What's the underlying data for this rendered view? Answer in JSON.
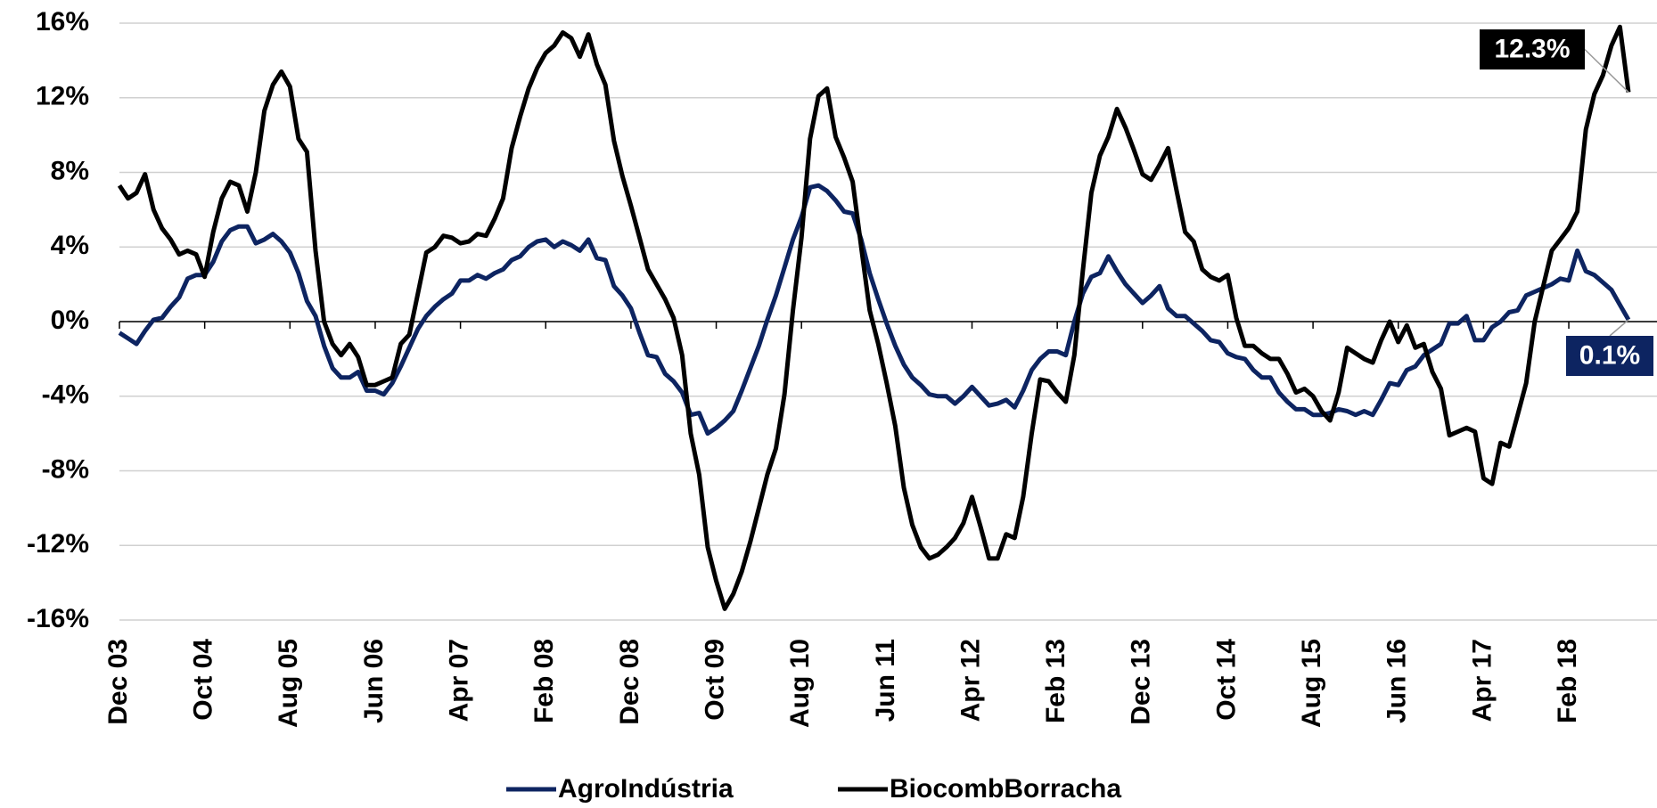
{
  "chart_data": {
    "type": "line",
    "categories": [
      "Dec 03",
      null,
      null,
      null,
      null,
      null,
      null,
      null,
      null,
      null,
      "Oct 04",
      null,
      null,
      null,
      null,
      null,
      null,
      null,
      null,
      null,
      "Aug 05",
      null,
      null,
      null,
      null,
      null,
      null,
      null,
      null,
      null,
      "Jun 06",
      null,
      null,
      null,
      null,
      null,
      null,
      null,
      null,
      null,
      "Apr 07",
      null,
      null,
      null,
      null,
      null,
      null,
      null,
      null,
      null,
      "Feb 08",
      null,
      null,
      null,
      null,
      null,
      null,
      null,
      null,
      null,
      "Dec 08",
      null,
      null,
      null,
      null,
      null,
      null,
      null,
      null,
      null,
      "Oct 09",
      null,
      null,
      null,
      null,
      null,
      null,
      null,
      null,
      null,
      "Aug 10",
      null,
      null,
      null,
      null,
      null,
      null,
      null,
      null,
      null,
      "Jun 11",
      null,
      null,
      null,
      null,
      null,
      null,
      null,
      null,
      null,
      "Apr 12",
      null,
      null,
      null,
      null,
      null,
      null,
      null,
      null,
      null,
      "Feb 13",
      null,
      null,
      null,
      null,
      null,
      null,
      null,
      null,
      null,
      "Dec 13",
      null,
      null,
      null,
      null,
      null,
      null,
      null,
      null,
      null,
      "Oct 14",
      null,
      null,
      null,
      null,
      null,
      null,
      null,
      null,
      null,
      "Aug 15",
      null,
      null,
      null,
      null,
      null,
      null,
      null,
      null,
      null,
      "Jun 16",
      null,
      null,
      null,
      null,
      null,
      null,
      null,
      null,
      null,
      "Apr 17",
      null,
      null,
      null,
      null,
      null,
      null,
      null,
      null,
      null,
      "Feb 18",
      null,
      null,
      null,
      null,
      null,
      null,
      null
    ],
    "series": [
      {
        "name": "AgroIndústria",
        "color": "#0d2461",
        "end_label": "0.1%",
        "values": [
          -0.6,
          -0.9,
          -1.2,
          -0.5,
          0.1,
          0.2,
          0.8,
          1.3,
          2.3,
          2.5,
          2.5,
          3.2,
          4.3,
          4.9,
          5.1,
          5.1,
          4.2,
          4.4,
          4.7,
          4.3,
          3.7,
          2.6,
          1.1,
          0.3,
          -1.3,
          -2.5,
          -3.0,
          -3.0,
          -2.7,
          -3.7,
          -3.7,
          -3.9,
          -3.3,
          -2.4,
          -1.4,
          -0.4,
          0.3,
          0.8,
          1.2,
          1.5,
          2.2,
          2.2,
          2.5,
          2.3,
          2.6,
          2.8,
          3.3,
          3.5,
          4.0,
          4.3,
          4.4,
          4.0,
          4.3,
          4.1,
          3.8,
          4.4,
          3.4,
          3.3,
          1.9,
          1.4,
          0.7,
          -0.6,
          -1.8,
          -1.9,
          -2.8,
          -3.2,
          -3.8,
          -5.0,
          -4.9,
          -6.0,
          -5.7,
          -5.3,
          -4.8,
          -3.7,
          -2.5,
          -1.3,
          0.1,
          1.4,
          2.9,
          4.4,
          5.6,
          7.2,
          7.3,
          7.0,
          6.5,
          5.9,
          5.8,
          4.4,
          2.6,
          1.2,
          -0.1,
          -1.3,
          -2.3,
          -3.0,
          -3.4,
          -3.9,
          -4.0,
          -4.0,
          -4.4,
          -4.0,
          -3.5,
          -4.0,
          -4.5,
          -4.4,
          -4.2,
          -4.6,
          -3.7,
          -2.6,
          -2.0,
          -1.6,
          -1.6,
          -1.8,
          0.0,
          1.5,
          2.4,
          2.6,
          3.5,
          2.7,
          2.0,
          1.5,
          1.0,
          1.4,
          1.9,
          0.7,
          0.3,
          0.3,
          -0.1,
          -0.5,
          -1.0,
          -1.1,
          -1.7,
          -1.9,
          -2.0,
          -2.6,
          -3.0,
          -3.0,
          -3.8,
          -4.3,
          -4.7,
          -4.7,
          -5.0,
          -5.0,
          -4.9,
          -4.7,
          -4.8,
          -5.0,
          -4.8,
          -5.0,
          -4.2,
          -3.3,
          -3.4,
          -2.6,
          -2.4,
          -1.8,
          -1.5,
          -1.2,
          -0.1,
          -0.1,
          0.3,
          -1.0,
          -1.0,
          -0.3,
          0.0,
          0.5,
          0.6,
          1.4,
          1.6,
          1.8,
          2.0,
          2.3,
          2.2,
          3.8,
          2.7,
          2.5,
          2.1,
          1.7,
          0.9,
          0.1
        ]
      },
      {
        "name": "BiocombBorracha",
        "color": "#000000",
        "end_label": "12.3%",
        "values": [
          7.3,
          6.6,
          6.9,
          7.9,
          6.0,
          5.0,
          4.4,
          3.6,
          3.8,
          3.6,
          2.4,
          4.8,
          6.6,
          7.5,
          7.3,
          5.9,
          8.0,
          11.3,
          12.7,
          13.4,
          12.6,
          9.8,
          9.1,
          3.8,
          0.0,
          -1.2,
          -1.8,
          -1.2,
          -1.9,
          -3.4,
          -3.4,
          -3.2,
          -3.0,
          -1.2,
          -0.7,
          1.5,
          3.7,
          4.0,
          4.6,
          4.5,
          4.2,
          4.3,
          4.7,
          4.6,
          5.5,
          6.6,
          9.3,
          11.0,
          12.5,
          13.6,
          14.4,
          14.8,
          15.5,
          15.2,
          14.2,
          15.4,
          13.8,
          12.7,
          9.7,
          7.8,
          6.2,
          4.5,
          2.8,
          2.0,
          1.2,
          0.2,
          -1.8,
          -6.0,
          -8.2,
          -12.1,
          -13.9,
          -15.4,
          -14.6,
          -13.4,
          -11.8,
          -10.0,
          -8.2,
          -6.8,
          -3.9,
          0.6,
          4.5,
          9.8,
          12.1,
          12.5,
          9.9,
          8.8,
          7.5,
          4.0,
          0.6,
          -1.2,
          -3.3,
          -5.6,
          -8.9,
          -10.9,
          -12.1,
          -12.7,
          -12.5,
          -12.1,
          -11.6,
          -10.8,
          -9.4,
          -11.0,
          -12.7,
          -12.7,
          -11.4,
          -11.6,
          -9.4,
          -6.0,
          -3.1,
          -3.2,
          -3.8,
          -4.3,
          -1.8,
          2.7,
          6.9,
          8.9,
          9.9,
          11.4,
          10.4,
          9.2,
          7.9,
          7.6,
          8.4,
          9.3,
          7.0,
          4.8,
          4.3,
          2.8,
          2.4,
          2.2,
          2.5,
          0.2,
          -1.3,
          -1.3,
          -1.7,
          -2.0,
          -2.0,
          -2.8,
          -3.8,
          -3.6,
          -4.0,
          -4.8,
          -5.3,
          -3.8,
          -1.4,
          -1.7,
          -2.0,
          -2.2,
          -1.0,
          0.0,
          -1.1,
          -0.2,
          -1.4,
          -1.2,
          -2.7,
          -3.6,
          -6.1,
          -5.9,
          -5.7,
          -5.9,
          -8.4,
          -8.7,
          -6.5,
          -6.7,
          -5.0,
          -3.3,
          0.0,
          1.9,
          3.8,
          4.4,
          5.0,
          5.9,
          10.3,
          12.2,
          13.2,
          14.8,
          15.8,
          12.3
        ]
      }
    ],
    "ylim": [
      -16,
      16
    ],
    "yticks": [
      {
        "value": -16,
        "label": "-16%"
      },
      {
        "value": -12,
        "label": "-12%"
      },
      {
        "value": -8,
        "label": "-8%"
      },
      {
        "value": -4,
        "label": "-4%"
      },
      {
        "value": 0,
        "label": "0%"
      },
      {
        "value": 4,
        "label": "4%"
      },
      {
        "value": 8,
        "label": "8%"
      },
      {
        "value": 12,
        "label": "12%"
      },
      {
        "value": 16,
        "label": "16%"
      }
    ],
    "grid": true,
    "legend": "bottom"
  }
}
